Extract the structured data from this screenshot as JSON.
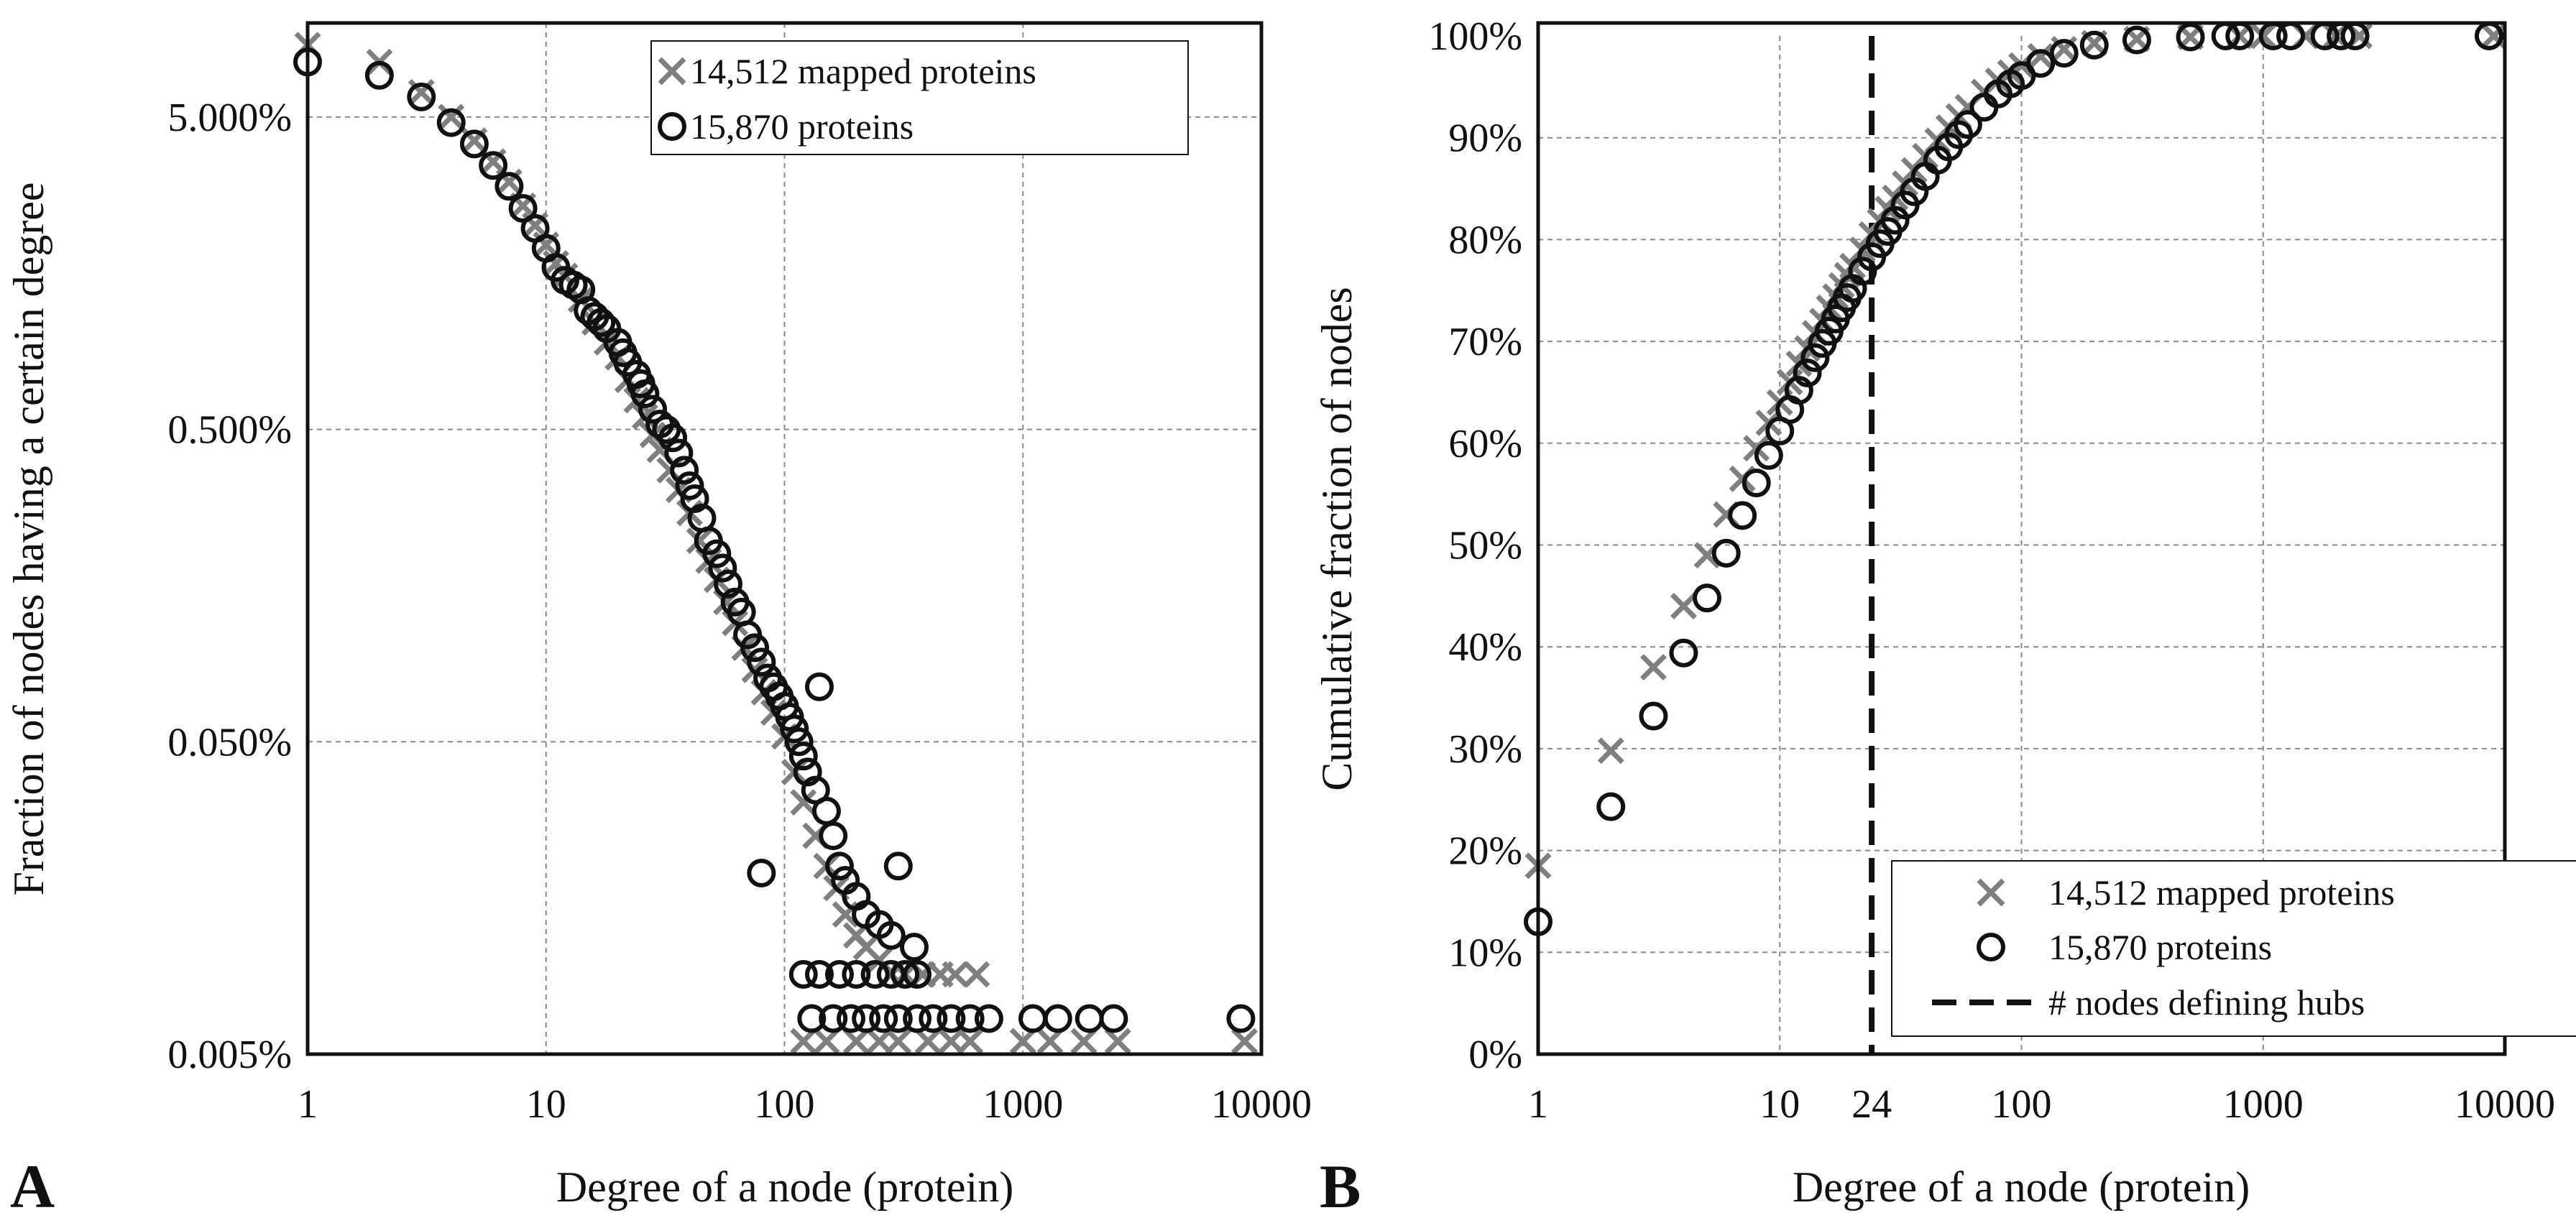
{
  "panels": [
    {
      "letter": "A"
    },
    {
      "letter": "B"
    }
  ],
  "chart_data": [
    {
      "type": "scatter",
      "panel": "A",
      "xlabel": "Degree of a node (protein)",
      "ylabel": "Fraction of nodes having a certain degree",
      "xscale": "log",
      "yscale": "log",
      "xlim": [
        1,
        10000
      ],
      "ylim": [
        0.005,
        10
      ],
      "xticks": [
        1,
        10,
        100,
        1000,
        10000
      ],
      "xtick_labels": [
        "1",
        "10",
        "100",
        "1000",
        "10000"
      ],
      "yticks": [
        0.005,
        0.05,
        0.5,
        5
      ],
      "ytick_labels": [
        "0.005%",
        "0.050%",
        "0.500%",
        "5.000%"
      ],
      "grid": true,
      "legend_position": "top-right",
      "series": [
        {
          "name": "14,512 mapped proteins",
          "marker": "x",
          "color": "#7f7f7f",
          "points": [
            [
              1,
              8.5
            ],
            [
              2,
              7.5
            ],
            [
              3,
              6.0
            ],
            [
              4,
              5.0
            ],
            [
              5,
              4.2
            ],
            [
              6,
              3.6
            ],
            [
              7,
              3.1
            ],
            [
              8,
              2.6
            ],
            [
              9,
              2.25
            ],
            [
              10,
              1.95
            ],
            [
              11,
              1.7
            ],
            [
              12,
              1.55
            ],
            [
              14,
              1.3
            ],
            [
              16,
              1.1
            ],
            [
              18,
              0.95
            ],
            [
              20,
              0.85
            ],
            [
              22,
              0.72
            ],
            [
              24,
              0.62
            ],
            [
              26,
              0.55
            ],
            [
              28,
              0.48
            ],
            [
              30,
              0.43
            ],
            [
              33,
              0.37
            ],
            [
              36,
              0.32
            ],
            [
              40,
              0.27
            ],
            [
              44,
              0.22
            ],
            [
              48,
              0.19
            ],
            [
              52,
              0.165
            ],
            [
              57,
              0.14
            ],
            [
              62,
              0.12
            ],
            [
              68,
              0.1
            ],
            [
              75,
              0.085
            ],
            [
              82,
              0.072
            ],
            [
              90,
              0.062
            ],
            [
              100,
              0.052
            ],
            [
              110,
              0.04
            ],
            [
              120,
              0.032
            ],
            [
              135,
              0.025
            ],
            [
              150,
              0.02
            ],
            [
              165,
              0.017
            ],
            [
              180,
              0.014
            ],
            [
              200,
              0.012
            ],
            [
              220,
              0.011
            ],
            [
              250,
              0.01
            ],
            [
              280,
              0.009
            ],
            [
              320,
              0.009
            ],
            [
              380,
              0.009
            ],
            [
              450,
              0.009
            ],
            [
              520,
              0.009
            ],
            [
              640,
              0.009
            ],
            [
              120,
              0.0055
            ],
            [
              150,
              0.0055
            ],
            [
              200,
              0.0055
            ],
            [
              250,
              0.0055
            ],
            [
              300,
              0.0055
            ],
            [
              400,
              0.0055
            ],
            [
              500,
              0.0055
            ],
            [
              600,
              0.0055
            ],
            [
              1000,
              0.0055
            ],
            [
              1300,
              0.0055
            ],
            [
              1800,
              0.0055
            ],
            [
              2500,
              0.0055
            ],
            [
              8500,
              0.0055
            ]
          ]
        },
        {
          "name": "15,870 proteins",
          "marker": "o",
          "color": "#111111",
          "points": [
            [
              1,
              7.5
            ],
            [
              2,
              6.8
            ],
            [
              3,
              5.8
            ],
            [
              4,
              4.8
            ],
            [
              5,
              4.1
            ],
            [
              6,
              3.5
            ],
            [
              7,
              3.0
            ],
            [
              8,
              2.55
            ],
            [
              9,
              2.2
            ],
            [
              10,
              1.9
            ],
            [
              11,
              1.65
            ],
            [
              12,
              1.5
            ],
            [
              13,
              1.45
            ],
            [
              14,
              1.4
            ],
            [
              15,
              1.2
            ],
            [
              16,
              1.15
            ],
            [
              17,
              1.1
            ],
            [
              18,
              1.05
            ],
            [
              20,
              0.95
            ],
            [
              21,
              0.88
            ],
            [
              22,
              0.82
            ],
            [
              24,
              0.75
            ],
            [
              25,
              0.7
            ],
            [
              26,
              0.65
            ],
            [
              28,
              0.58
            ],
            [
              30,
              0.52
            ],
            [
              32,
              0.5
            ],
            [
              34,
              0.47
            ],
            [
              36,
              0.42
            ],
            [
              38,
              0.37
            ],
            [
              40,
              0.33
            ],
            [
              42,
              0.3
            ],
            [
              45,
              0.26
            ],
            [
              48,
              0.22
            ],
            [
              52,
              0.2
            ],
            [
              55,
              0.18
            ],
            [
              58,
              0.16
            ],
            [
              62,
              0.14
            ],
            [
              66,
              0.13
            ],
            [
              70,
              0.11
            ],
            [
              75,
              0.1
            ],
            [
              80,
              0.09
            ],
            [
              85,
              0.08
            ],
            [
              90,
              0.075
            ],
            [
              95,
              0.07
            ],
            [
              100,
              0.065
            ],
            [
              105,
              0.06
            ],
            [
              110,
              0.055
            ],
            [
              115,
              0.05
            ],
            [
              120,
              0.045
            ],
            [
              125,
              0.04
            ],
            [
              135,
              0.035
            ],
            [
              140,
              0.075
            ],
            [
              150,
              0.03
            ],
            [
              160,
              0.025
            ],
            [
              170,
              0.02
            ],
            [
              180,
              0.018
            ],
            [
              200,
              0.016
            ],
            [
              220,
              0.014
            ],
            [
              250,
              0.013
            ],
            [
              280,
              0.012
            ],
            [
              300,
              0.02
            ],
            [
              350,
              0.011
            ],
            [
              80,
              0.019
            ],
            [
              120,
              0.009
            ],
            [
              140,
              0.009
            ],
            [
              170,
              0.009
            ],
            [
              200,
              0.009
            ],
            [
              240,
              0.009
            ],
            [
              280,
              0.009
            ],
            [
              320,
              0.009
            ],
            [
              360,
              0.009
            ],
            [
              130,
              0.0065
            ],
            [
              160,
              0.0065
            ],
            [
              190,
              0.0065
            ],
            [
              220,
              0.0065
            ],
            [
              260,
              0.0065
            ],
            [
              300,
              0.0065
            ],
            [
              360,
              0.0065
            ],
            [
              420,
              0.0065
            ],
            [
              500,
              0.0065
            ],
            [
              600,
              0.0065
            ],
            [
              720,
              0.0065
            ],
            [
              1100,
              0.0065
            ],
            [
              1400,
              0.0065
            ],
            [
              1900,
              0.0065
            ],
            [
              2400,
              0.0065
            ],
            [
              8200,
              0.0065
            ]
          ]
        }
      ]
    },
    {
      "type": "scatter",
      "panel": "B",
      "xlabel": "Degree of a node (protein)",
      "ylabel": "Cumulative fraction of nodes",
      "xscale": "log",
      "yscale": "linear",
      "xlim": [
        1,
        10000
      ],
      "ylim": [
        0,
        100
      ],
      "xticks": [
        1,
        10,
        24,
        100,
        1000,
        10000
      ],
      "xtick_labels": [
        "1",
        "10",
        "24",
        "100",
        "1000",
        "10000"
      ],
      "yticks": [
        0,
        10,
        20,
        30,
        40,
        50,
        60,
        70,
        80,
        90,
        100
      ],
      "ytick_labels": [
        "0%",
        "10%",
        "20%",
        "30%",
        "40%",
        "50%",
        "60%",
        "70%",
        "80%",
        "90%",
        "100%"
      ],
      "grid": true,
      "legend_position": "bottom-right",
      "vline": {
        "x": 24,
        "name": "# nodes defining hubs",
        "style": "dashed"
      },
      "series": [
        {
          "name": "14,512 mapped proteins",
          "marker": "x",
          "color": "#7f7f7f",
          "points": [
            [
              1,
              18.5
            ],
            [
              2,
              29.8
            ],
            [
              3,
              38
            ],
            [
              4,
              44
            ],
            [
              5,
              49
            ],
            [
              6,
              53
            ],
            [
              7,
              56.5
            ],
            [
              8,
              59.5
            ],
            [
              9,
              62
            ],
            [
              10,
              64
            ],
            [
              11,
              66
            ],
            [
              12,
              67.8
            ],
            [
              13,
              69.3
            ],
            [
              14,
              70.8
            ],
            [
              15,
              72
            ],
            [
              16,
              73.3
            ],
            [
              17,
              74.4
            ],
            [
              18,
              75.5
            ],
            [
              19,
              76.5
            ],
            [
              20,
              77.4
            ],
            [
              22,
              79
            ],
            [
              24,
              80.5
            ],
            [
              26,
              81.8
            ],
            [
              28,
              83
            ],
            [
              30,
              84.1
            ],
            [
              33,
              85.5
            ],
            [
              36,
              86.8
            ],
            [
              40,
              88.2
            ],
            [
              45,
              89.7
            ],
            [
              50,
              91
            ],
            [
              55,
              92.1
            ],
            [
              60,
              93
            ],
            [
              70,
              94.5
            ],
            [
              80,
              95.6
            ],
            [
              90,
              96.4
            ],
            [
              100,
              97.1
            ],
            [
              120,
              98
            ],
            [
              150,
              98.7
            ],
            [
              200,
              99.3
            ],
            [
              300,
              99.7
            ],
            [
              500,
              99.9
            ],
            [
              800,
              100
            ],
            [
              1000,
              100
            ],
            [
              1500,
              100
            ],
            [
              2000,
              100
            ],
            [
              2500,
              100
            ],
            [
              9000,
              100
            ]
          ]
        },
        {
          "name": "15,870 proteins",
          "marker": "o",
          "color": "#111111",
          "points": [
            [
              1,
              13
            ],
            [
              2,
              24.3
            ],
            [
              3,
              33.2
            ],
            [
              4,
              39.4
            ],
            [
              5,
              44.8
            ],
            [
              6,
              49.2
            ],
            [
              7,
              52.9
            ],
            [
              8,
              56.1
            ],
            [
              9,
              58.8
            ],
            [
              10,
              61.2
            ],
            [
              11,
              63.3
            ],
            [
              12,
              65.2
            ],
            [
              13,
              66.9
            ],
            [
              14,
              68.4
            ],
            [
              15,
              69.8
            ],
            [
              16,
              71
            ],
            [
              17,
              72.2
            ],
            [
              18,
              73.3
            ],
            [
              19,
              74.3
            ],
            [
              20,
              75.2
            ],
            [
              22,
              76.9
            ],
            [
              24,
              78.3
            ],
            [
              26,
              79.6
            ],
            [
              28,
              80.8
            ],
            [
              30,
              81.9
            ],
            [
              33,
              83.4
            ],
            [
              36,
              84.7
            ],
            [
              40,
              86.2
            ],
            [
              45,
              87.8
            ],
            [
              50,
              89.1
            ],
            [
              55,
              90.3
            ],
            [
              60,
              91.3
            ],
            [
              70,
              93
            ],
            [
              80,
              94.3
            ],
            [
              90,
              95.3
            ],
            [
              100,
              96.1
            ],
            [
              120,
              97.3
            ],
            [
              150,
              98.3
            ],
            [
              200,
              99.1
            ],
            [
              300,
              99.6
            ],
            [
              500,
              99.9
            ],
            [
              700,
              100
            ],
            [
              800,
              100
            ],
            [
              1100,
              100
            ],
            [
              1300,
              100
            ],
            [
              1800,
              100
            ],
            [
              2100,
              100
            ],
            [
              2400,
              100
            ],
            [
              8600,
              100
            ]
          ]
        }
      ]
    }
  ]
}
